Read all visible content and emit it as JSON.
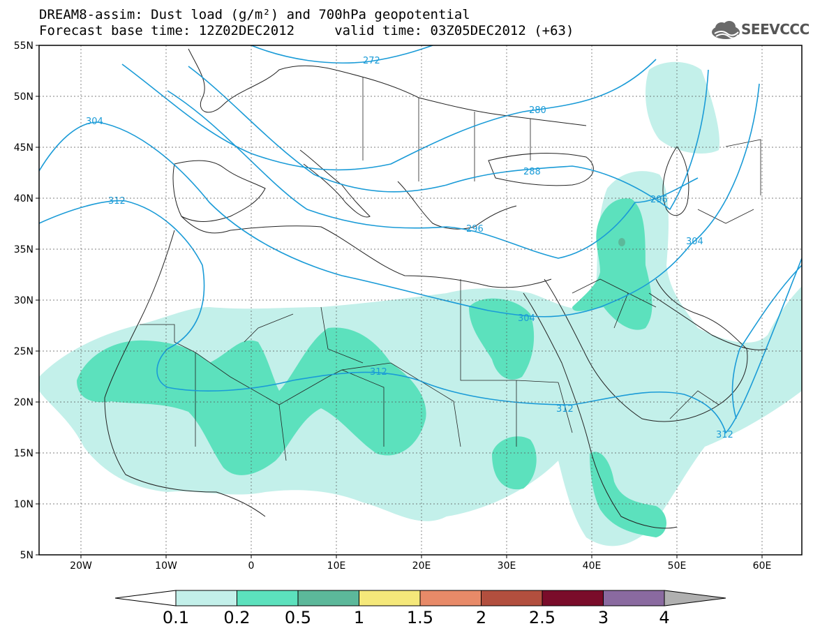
{
  "title": {
    "line1": "DREAM8-assim: Dust load (g/m²) and 700hPa geopotential",
    "line2": "Forecast base time: 12Z02DEC2012     valid time: 03Z05DEC2012 (+63)"
  },
  "logo": {
    "text": "SEEVCCC",
    "icon": "cloud-icon"
  },
  "map": {
    "lat_labels": [
      "55N",
      "50N",
      "45N",
      "40N",
      "35N",
      "30N",
      "25N",
      "20N",
      "15N",
      "10N",
      "5N"
    ],
    "lon_labels": [
      "20W",
      "10W",
      "0",
      "10E",
      "20E",
      "30E",
      "40E",
      "50E",
      "60E"
    ],
    "contour_labels": [
      "272",
      "280",
      "288",
      "296",
      "296",
      "304",
      "304",
      "304",
      "312",
      "312",
      "312",
      "312"
    ]
  },
  "colorbar": {
    "ticks": [
      "0.1",
      "0.2",
      "0.5",
      "1",
      "1.5",
      "2",
      "2.5",
      "3",
      "4"
    ],
    "colors": [
      "#c3f0ea",
      "#5ce1bd",
      "#5cb89a",
      "#f5e87a",
      "#e88a68",
      "#b24f3e",
      "#7a0c2a",
      "#8a6aa0",
      "#b0b0b0"
    ]
  }
}
